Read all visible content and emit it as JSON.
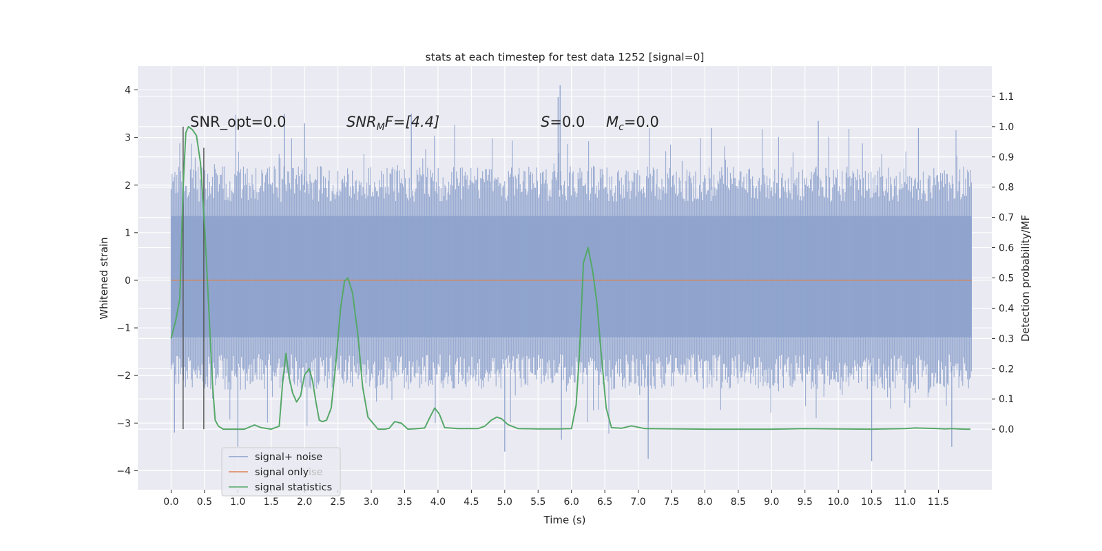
{
  "chart_data": {
    "type": "line",
    "title": "stats at each timestep for test data 1252 [signal=0]",
    "xlabel": "Time (s)",
    "ylabel": "Whitened strain",
    "ylabel_right": "Detection probability/MF",
    "xlim": [
      -0.5,
      12.3
    ],
    "ylim": [
      -4.4,
      4.5
    ],
    "ylim_right": [
      -0.2,
      1.2
    ],
    "xticks": [
      0.0,
      0.5,
      1.0,
      1.5,
      2.0,
      2.5,
      3.0,
      3.5,
      4.0,
      4.5,
      5.0,
      5.5,
      6.0,
      6.5,
      7.0,
      7.5,
      8.0,
      8.5,
      9.0,
      9.5,
      10.0,
      10.5,
      11.0,
      11.5
    ],
    "xtick_labels": [
      "0.0",
      "0.5",
      "1.0",
      "1.5",
      "2.0",
      "2.5",
      "3.0",
      "3.5",
      "4.0",
      "4.5",
      "5.0",
      "5.5",
      "6.0",
      "6.5",
      "7.0",
      "7.5",
      "8.0",
      "8.5",
      "9.0",
      "9.5",
      "10.0",
      "10.5",
      "11.0",
      "11.5"
    ],
    "yticks": [
      -4,
      -3,
      -2,
      -1,
      0,
      1,
      2,
      3,
      4
    ],
    "ytick_labels": [
      "−4",
      "−3",
      "−2",
      "−1",
      "0",
      "1",
      "2",
      "3",
      "4"
    ],
    "yticks_right": [
      0.0,
      0.1,
      0.2,
      0.3,
      0.4,
      0.5,
      0.6,
      0.7,
      0.8,
      0.9,
      1.0,
      1.1
    ],
    "ytick_labels_right": [
      "0.0",
      "0.1",
      "0.2",
      "0.3",
      "0.4",
      "0.5",
      "0.6",
      "0.7",
      "0.8",
      "0.9",
      "1.0",
      "1.1"
    ],
    "grid": true,
    "legend_position": "bottom-left",
    "legend": [
      "signal+ noise",
      "signal only",
      "signal statistics"
    ],
    "legend_overlap_text": "ise",
    "annotations": {
      "snr_opt": "SNR_opt=0.0",
      "snr_mf_main": "SNR",
      "snr_mf_sub": "M",
      "snr_mf_rest": "F=[4.4]",
      "s_main": "S",
      "s_rest": "=0.0",
      "mc_main": "M",
      "mc_sub": "c",
      "mc_rest": "=0.0"
    },
    "series": [
      {
        "name": "signal+ noise",
        "axis": "left",
        "color": "#8da2cc",
        "x_range": [
          0.0,
          12.0
        ],
        "band": {
          "low": -1.2,
          "high": 1.35
        },
        "typical_envelope": {
          "low": -1.8,
          "high": 1.9
        },
        "extreme_peaks": [
          {
            "x": 5.83,
            "y": 4.1
          },
          {
            "x": 5.8,
            "y": 3.85
          },
          {
            "x": 1.7,
            "y": 3.5
          },
          {
            "x": 3.6,
            "y": 3.5
          },
          {
            "x": 9.7,
            "y": 3.35
          },
          {
            "x": 2.0,
            "y": 3.3
          },
          {
            "x": 8.1,
            "y": 3.2
          },
          {
            "x": 11.2,
            "y": 3.2
          },
          {
            "x": 5.85,
            "y": -3.35
          },
          {
            "x": 1.0,
            "y": -3.5
          },
          {
            "x": 5.0,
            "y": -3.6
          },
          {
            "x": 7.15,
            "y": -3.75
          },
          {
            "x": 10.5,
            "y": -3.8
          },
          {
            "x": 11.7,
            "y": -3.5
          },
          {
            "x": 0.05,
            "y": -3.2
          }
        ]
      },
      {
        "name": "signal only",
        "axis": "left",
        "color": "#dd8452",
        "x": [
          0.0,
          12.0
        ],
        "y": [
          0.0,
          0.0
        ]
      },
      {
        "name": "signal statistics",
        "axis": "right",
        "color": "#55a868",
        "x": [
          0.0,
          0.07,
          0.13,
          0.18,
          0.22,
          0.26,
          0.32,
          0.38,
          0.44,
          0.5,
          0.56,
          0.62,
          0.66,
          0.71,
          0.78,
          0.9,
          1.1,
          1.25,
          1.35,
          1.5,
          1.62,
          1.67,
          1.72,
          1.77,
          1.82,
          1.88,
          1.94,
          2.0,
          2.07,
          2.12,
          2.17,
          2.22,
          2.27,
          2.33,
          2.4,
          2.47,
          2.54,
          2.6,
          2.65,
          2.72,
          2.8,
          2.87,
          2.95,
          3.1,
          3.2,
          3.27,
          3.35,
          3.45,
          3.55,
          3.7,
          3.8,
          3.88,
          3.95,
          4.02,
          4.1,
          4.3,
          4.6,
          4.7,
          4.8,
          4.88,
          4.95,
          5.05,
          5.2,
          5.5,
          5.8,
          6.0,
          6.07,
          6.12,
          6.18,
          6.25,
          6.32,
          6.38,
          6.45,
          6.52,
          6.6,
          6.75,
          6.9,
          7.1,
          8.0,
          9.0,
          9.5,
          10.0,
          10.5,
          11.0,
          11.15,
          11.3,
          11.5,
          11.6,
          11.7,
          11.8,
          11.9,
          11.98
        ],
        "y": [
          0.3,
          0.36,
          0.43,
          0.8,
          0.98,
          1.0,
          0.99,
          0.97,
          0.88,
          0.68,
          0.42,
          0.15,
          0.03,
          0.01,
          0.0,
          0.0,
          0.0,
          0.014,
          0.005,
          0.0,
          0.01,
          0.15,
          0.25,
          0.17,
          0.12,
          0.09,
          0.11,
          0.18,
          0.2,
          0.16,
          0.09,
          0.03,
          0.025,
          0.03,
          0.07,
          0.22,
          0.4,
          0.49,
          0.5,
          0.45,
          0.31,
          0.14,
          0.04,
          0.0,
          0.0,
          0.003,
          0.025,
          0.02,
          0.0,
          0.002,
          0.004,
          0.04,
          0.07,
          0.05,
          0.005,
          0.002,
          0.002,
          0.01,
          0.03,
          0.04,
          0.035,
          0.015,
          0.002,
          0.001,
          0.001,
          0.002,
          0.08,
          0.25,
          0.55,
          0.6,
          0.52,
          0.42,
          0.24,
          0.07,
          0.005,
          0.003,
          0.011,
          0.002,
          0.0,
          0.0,
          0.002,
          0.001,
          0.0,
          0.002,
          0.004,
          0.003,
          0.002,
          0.001,
          0.002,
          0.001,
          0.0,
          0.0
        ]
      }
    ],
    "vertical_lines": [
      {
        "x": 0.18,
        "y_range_right": [
          0.0,
          1.0
        ],
        "color": "#555555"
      },
      {
        "x": 0.49,
        "y_range_right": [
          0.0,
          0.93
        ],
        "color": "#555555"
      }
    ]
  }
}
